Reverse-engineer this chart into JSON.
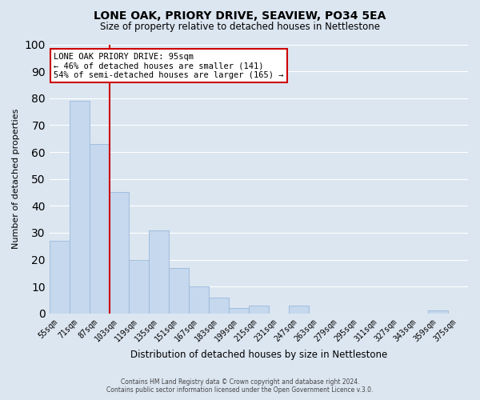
{
  "title": "LONE OAK, PRIORY DRIVE, SEAVIEW, PO34 5EA",
  "subtitle": "Size of property relative to detached houses in Nettlestone",
  "xlabel": "Distribution of detached houses by size in Nettlestone",
  "ylabel": "Number of detached properties",
  "bar_color": "#c5d8ee",
  "bar_edge_color": "#9ab8d8",
  "bins": [
    "55sqm",
    "71sqm",
    "87sqm",
    "103sqm",
    "119sqm",
    "135sqm",
    "151sqm",
    "167sqm",
    "183sqm",
    "199sqm",
    "215sqm",
    "231sqm",
    "247sqm",
    "263sqm",
    "279sqm",
    "295sqm",
    "311sqm",
    "327sqm",
    "343sqm",
    "359sqm",
    "375sqm"
  ],
  "values": [
    27,
    79,
    63,
    45,
    20,
    31,
    17,
    10,
    6,
    2,
    3,
    0,
    3,
    0,
    0,
    0,
    0,
    0,
    0,
    1,
    0
  ],
  "vline_color": "#cc0000",
  "ylim": [
    0,
    100
  ],
  "annotation_title": "LONE OAK PRIORY DRIVE: 95sqm",
  "annotation_line1": "← 46% of detached houses are smaller (141)",
  "annotation_line2": "54% of semi-detached houses are larger (165) →",
  "footer1": "Contains HM Land Registry data © Crown copyright and database right 2024.",
  "footer2": "Contains public sector information licensed under the Open Government Licence v.3.0.",
  "grid_color": "#ffffff",
  "bg_color": "#dce6f1"
}
